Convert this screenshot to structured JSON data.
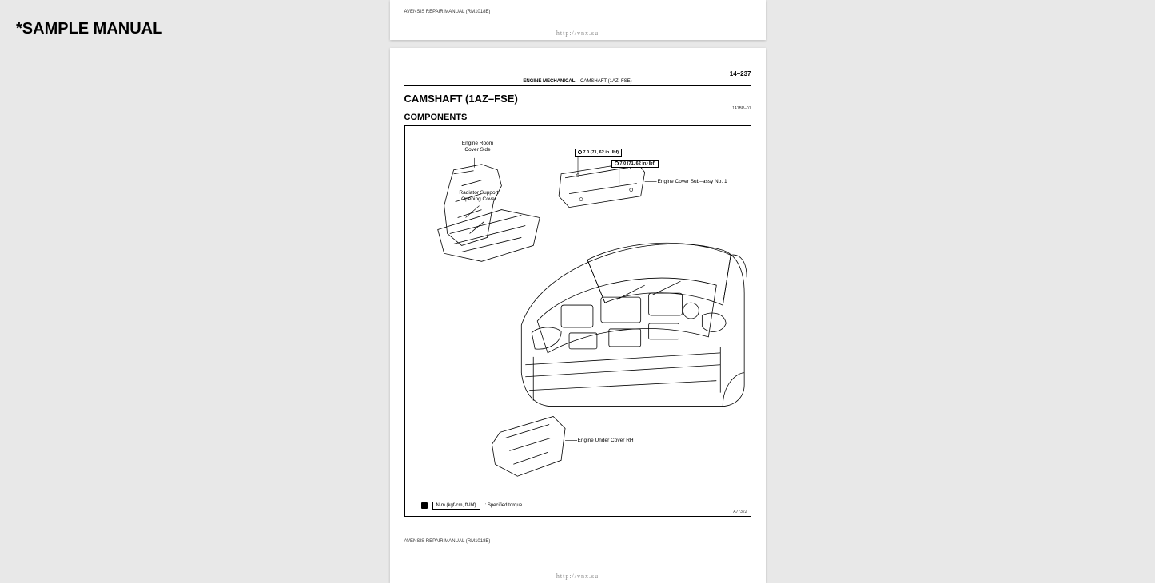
{
  "watermark": "*SAMPLE MANUAL",
  "footer_manual": "AVENSIS REPAIR MANUAL   (RM1018E)",
  "footer_url": "http://vnx.su",
  "page_number": "14–237",
  "header": {
    "section": "ENGINE MECHANICAL",
    "sep": "   –   ",
    "topic": "CAMSHAFT (1AZ–FSE)"
  },
  "main_title": "CAMSHAFT (1AZ–FSE)",
  "doc_code": "141BP–01",
  "subtitle": "COMPONENTS",
  "labels": {
    "engine_room_cover_side": "Engine Room\nCover Side",
    "radiator_support": "Radiator Support\nOpening Cover",
    "engine_cover_sub": "Engine Cover Sub–assy No. 1",
    "engine_under_cover": "Engine Under Cover RH"
  },
  "torque_specs": {
    "spec1": "7.0 (71, 62 in.·lbf)",
    "spec2": "7.0 (71, 62 in.·lbf)"
  },
  "torque_legend": {
    "box": "N·m (kgf·cm, ft·lbf)",
    "text": ": Specified torque"
  },
  "fig_code": "A77322",
  "colors": {
    "page_bg": "#ffffff",
    "body_bg": "#e8e8e8",
    "line": "#000000",
    "muted": "#888888"
  }
}
